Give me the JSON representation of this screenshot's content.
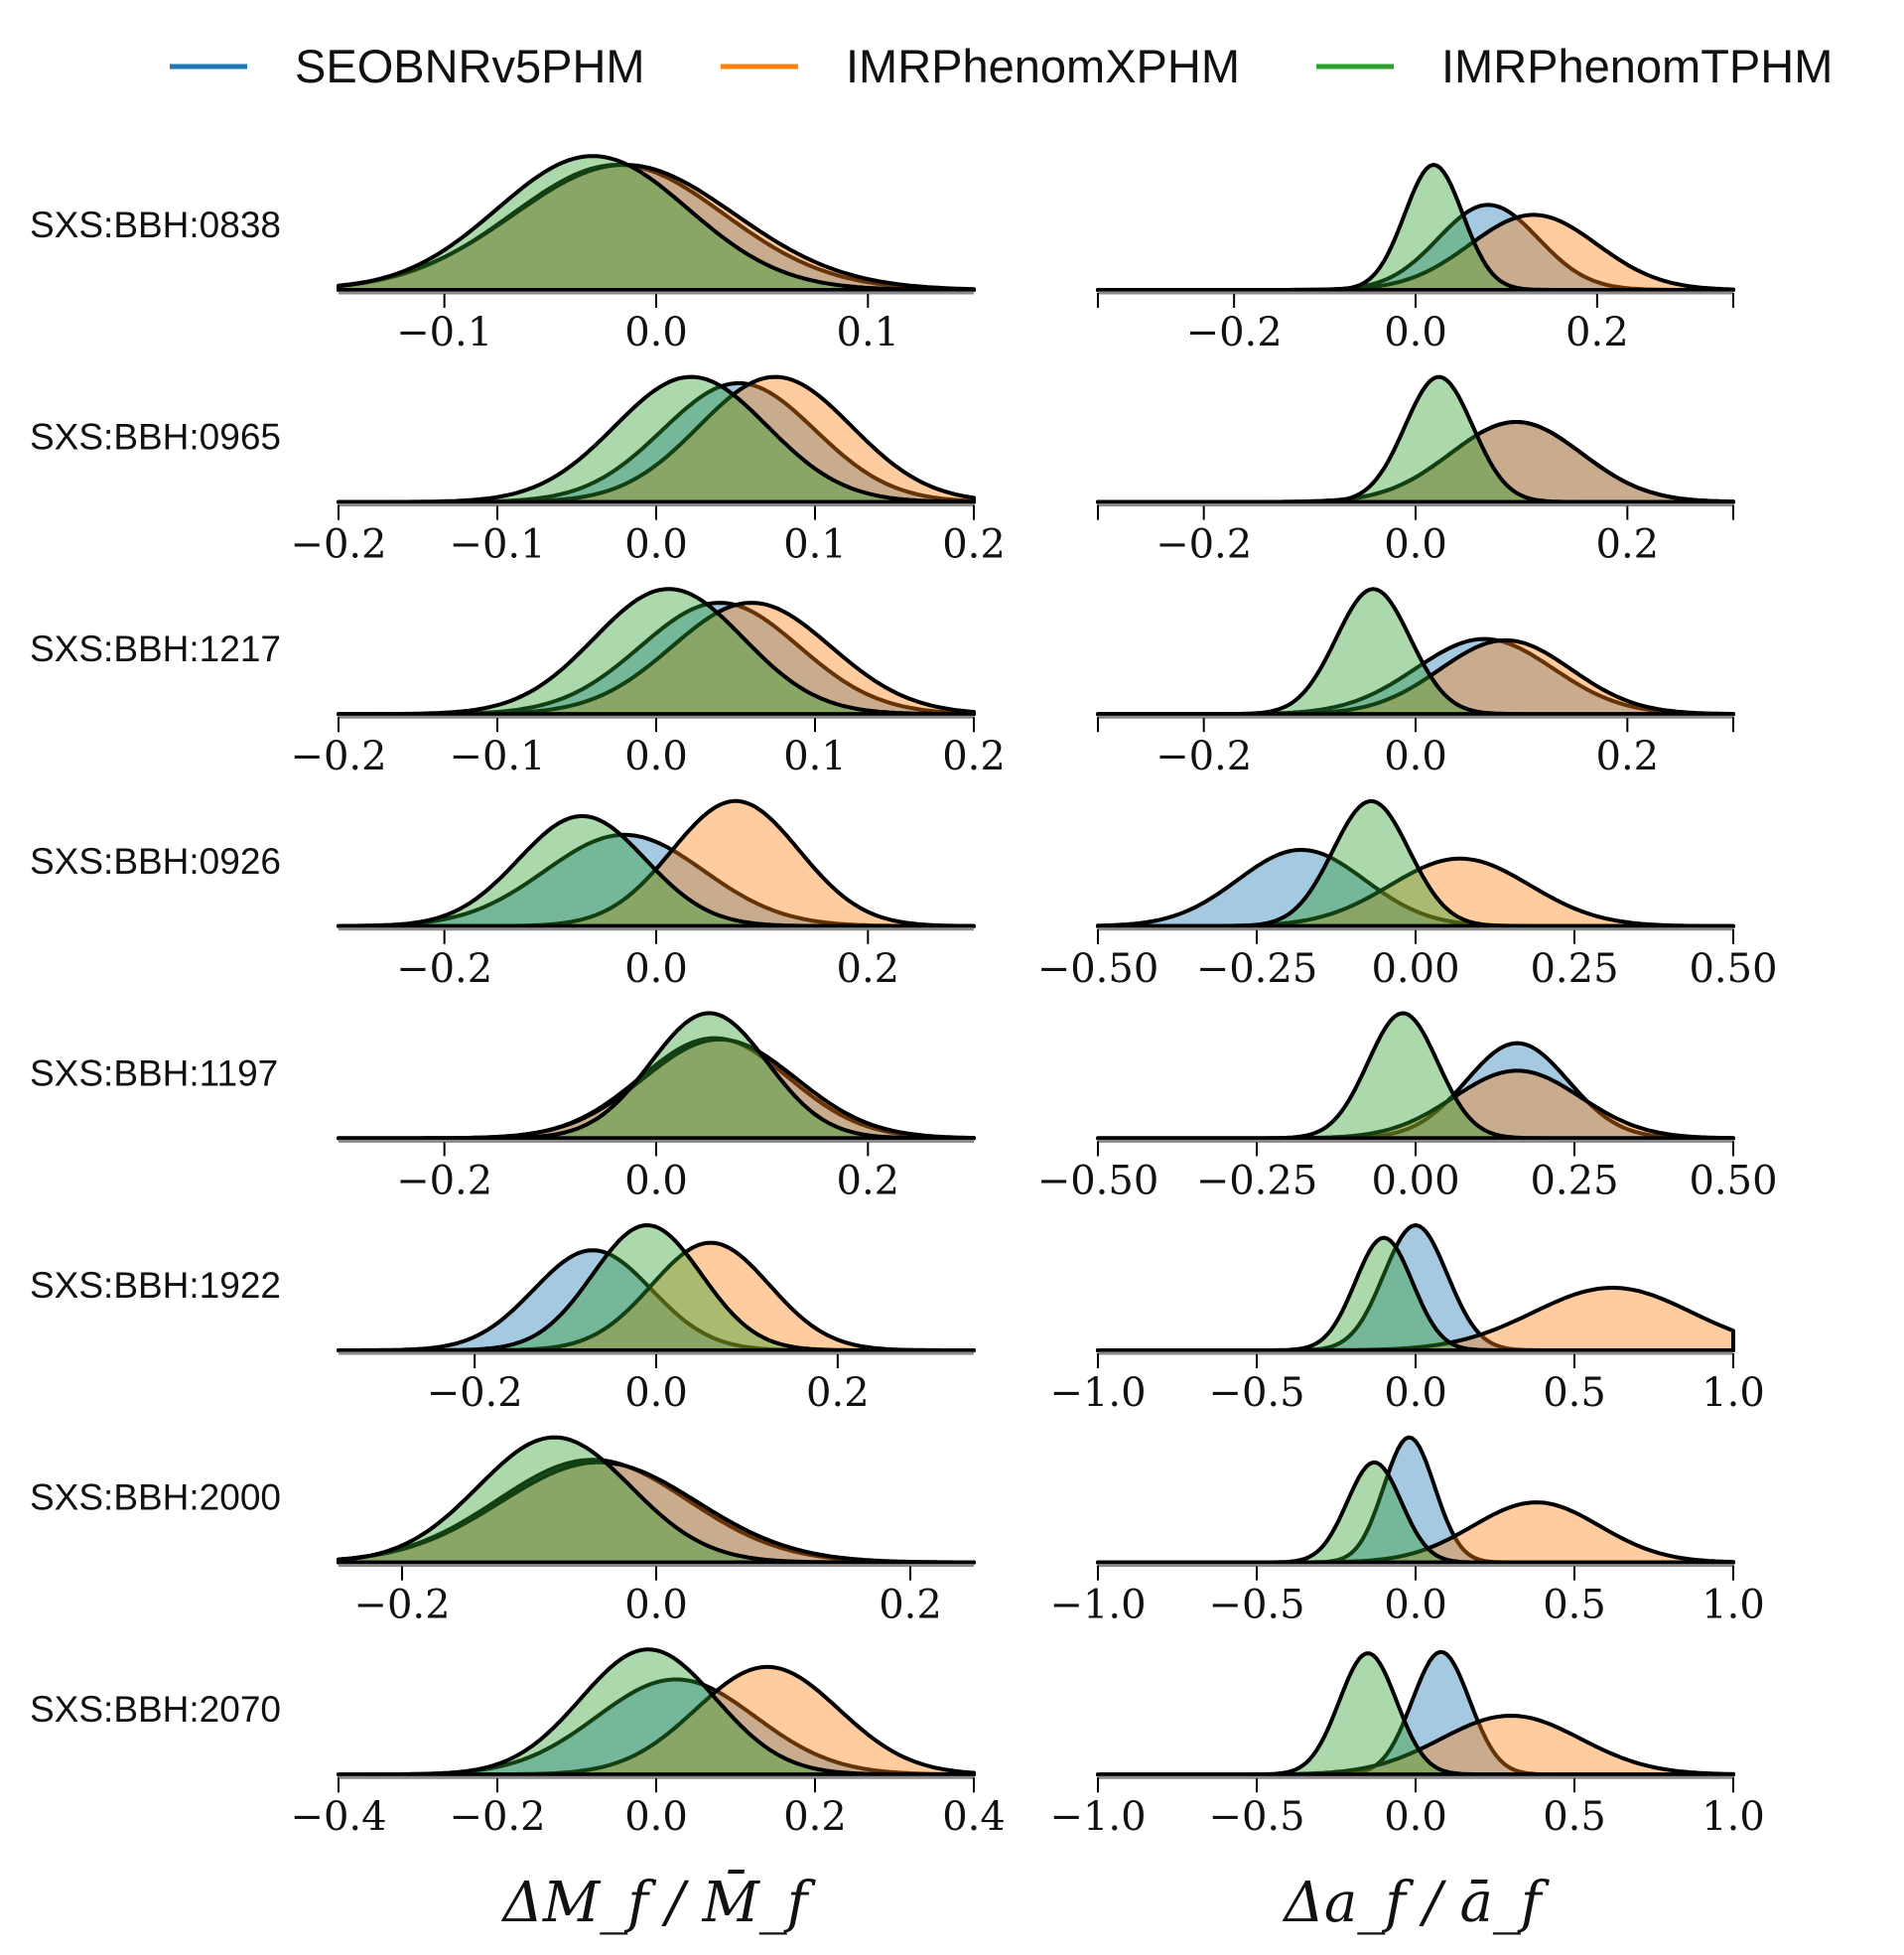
{
  "colors": {
    "SEOBNRv5PHM": "#1f77b4",
    "IMRPhenomXPHM": "#ff7f0e",
    "IMRPhenomTPHM": "#2ca02c"
  },
  "legend": [
    {
      "name": "SEOBNRv5PHM",
      "color": "#1f77b4"
    },
    {
      "name": "IMRPhenomXPHM",
      "color": "#ff7f0e"
    },
    {
      "name": "IMRPhenomTPHM",
      "color": "#2ca02c"
    }
  ],
  "xlabels": {
    "left": "ΔM_f / M̄_f",
    "right": "Δa_f / ā_f"
  },
  "chart_data": [
    {
      "type": "area",
      "row": "SXS:BBH:0838",
      "column": "mass",
      "xlim": [
        -0.15,
        0.15
      ],
      "ticks": [
        -0.1,
        0.0,
        0.1
      ],
      "tick_labels": [
        "−0.1",
        "0.0",
        "0.1"
      ],
      "tick_marks": false,
      "series": [
        {
          "name": "SEOBNRv5PHM",
          "mean": -0.018,
          "sd": 0.05,
          "peak": 1.0
        },
        {
          "name": "IMRPhenomXPHM",
          "mean": -0.015,
          "sd": 0.052,
          "peak": 1.0
        },
        {
          "name": "IMRPhenomTPHM",
          "mean": -0.03,
          "sd": 0.045,
          "peak": 1.07
        }
      ]
    },
    {
      "type": "area",
      "row": "SXS:BBH:0838",
      "column": "spin",
      "xlim": [
        -0.35,
        0.35
      ],
      "ticks": [
        -0.2,
        0.0,
        0.2
      ],
      "tick_labels": [
        "−0.2",
        "0.0",
        "0.2"
      ],
      "tick_marks": true,
      "series": [
        {
          "name": "SEOBNRv5PHM",
          "mean": 0.08,
          "sd": 0.055,
          "peak": 0.68
        },
        {
          "name": "IMRPhenomXPHM",
          "mean": 0.13,
          "sd": 0.07,
          "peak": 0.6
        },
        {
          "name": "IMRPhenomTPHM",
          "mean": 0.02,
          "sd": 0.032,
          "peak": 1.0
        }
      ]
    },
    {
      "type": "area",
      "row": "SXS:BBH:0965",
      "column": "mass",
      "xlim": [
        -0.2,
        0.2
      ],
      "ticks": [
        -0.2,
        -0.1,
        0.0,
        0.1,
        0.2
      ],
      "tick_labels": [
        "−0.2",
        "−0.1",
        "0.0",
        "0.1",
        "0.2"
      ],
      "tick_marks": true,
      "series": [
        {
          "name": "SEOBNRv5PHM",
          "mean": 0.052,
          "sd": 0.048,
          "peak": 0.95
        },
        {
          "name": "IMRPhenomXPHM",
          "mean": 0.075,
          "sd": 0.048,
          "peak": 1.0
        },
        {
          "name": "IMRPhenomTPHM",
          "mean": 0.022,
          "sd": 0.048,
          "peak": 1.0
        }
      ]
    },
    {
      "type": "area",
      "row": "SXS:BBH:0965",
      "column": "spin",
      "xlim": [
        -0.3,
        0.3
      ],
      "ticks": [
        -0.2,
        0.0,
        0.2
      ],
      "tick_labels": [
        "−0.2",
        "0.0",
        "0.2"
      ],
      "tick_marks": true,
      "series": [
        {
          "name": "SEOBNRv5PHM",
          "mean": 0.095,
          "sd": 0.062,
          "peak": 0.64
        },
        {
          "name": "IMRPhenomXPHM",
          "mean": 0.095,
          "sd": 0.062,
          "peak": 0.64
        },
        {
          "name": "IMRPhenomTPHM",
          "mean": 0.022,
          "sd": 0.032,
          "peak": 1.0
        }
      ]
    },
    {
      "type": "area",
      "row": "SXS:BBH:1217",
      "column": "mass",
      "xlim": [
        -0.2,
        0.2
      ],
      "ticks": [
        -0.2,
        -0.1,
        0.0,
        0.1,
        0.2
      ],
      "tick_labels": [
        "−0.2",
        "−0.1",
        "0.0",
        "0.1",
        "0.2"
      ],
      "tick_marks": true,
      "series": [
        {
          "name": "SEOBNRv5PHM",
          "mean": 0.04,
          "sd": 0.05,
          "peak": 0.89
        },
        {
          "name": "IMRPhenomXPHM",
          "mean": 0.06,
          "sd": 0.05,
          "peak": 0.89
        },
        {
          "name": "IMRPhenomTPHM",
          "mean": 0.008,
          "sd": 0.047,
          "peak": 1.0
        }
      ]
    },
    {
      "type": "area",
      "row": "SXS:BBH:1217",
      "column": "spin",
      "xlim": [
        -0.3,
        0.3
      ],
      "ticks": [
        -0.2,
        0.0,
        0.2
      ],
      "tick_labels": [
        "−0.2",
        "0.0",
        "0.2"
      ],
      "tick_marks": true,
      "series": [
        {
          "name": "SEOBNRv5PHM",
          "mean": 0.065,
          "sd": 0.065,
          "peak": 0.6
        },
        {
          "name": "IMRPhenomXPHM",
          "mean": 0.085,
          "sd": 0.062,
          "peak": 0.59
        },
        {
          "name": "IMRPhenomTPHM",
          "mean": -0.04,
          "sd": 0.035,
          "peak": 1.0
        }
      ]
    },
    {
      "type": "area",
      "row": "SXS:BBH:0926",
      "column": "mass",
      "xlim": [
        -0.3,
        0.3
      ],
      "ticks": [
        -0.2,
        0.0,
        0.2
      ],
      "tick_labels": [
        "−0.2",
        "0.0",
        "0.2"
      ],
      "tick_marks": false,
      "series": [
        {
          "name": "SEOBNRv5PHM",
          "mean": -0.03,
          "sd": 0.075,
          "peak": 0.73
        },
        {
          "name": "IMRPhenomXPHM",
          "mean": 0.075,
          "sd": 0.06,
          "peak": 1.0
        },
        {
          "name": "IMRPhenomTPHM",
          "mean": -0.07,
          "sd": 0.06,
          "peak": 0.88
        }
      ]
    },
    {
      "type": "area",
      "row": "SXS:BBH:0926",
      "column": "spin",
      "xlim": [
        -0.5,
        0.5
      ],
      "ticks": [
        -0.5,
        -0.25,
        0.0,
        0.25,
        0.5
      ],
      "tick_labels": [
        "−0.50",
        "−0.25",
        "0.00",
        "0.25",
        "0.50"
      ],
      "tick_marks": true,
      "series": [
        {
          "name": "SEOBNRv5PHM",
          "mean": -0.18,
          "sd": 0.1,
          "peak": 0.61
        },
        {
          "name": "IMRPhenomXPHM",
          "mean": 0.07,
          "sd": 0.11,
          "peak": 0.54
        },
        {
          "name": "IMRPhenomTPHM",
          "mean": -0.07,
          "sd": 0.06,
          "peak": 1.0
        }
      ]
    },
    {
      "type": "area",
      "row": "SXS:BBH:1197",
      "column": "mass",
      "xlim": [
        -0.3,
        0.3
      ],
      "ticks": [
        -0.2,
        0.0,
        0.2
      ],
      "tick_labels": [
        "−0.2",
        "0.0",
        "0.2"
      ],
      "tick_marks": false,
      "series": [
        {
          "name": "SEOBNRv5PHM",
          "mean": 0.055,
          "sd": 0.07,
          "peak": 0.8
        },
        {
          "name": "IMRPhenomXPHM",
          "mean": 0.06,
          "sd": 0.072,
          "peak": 0.79
        },
        {
          "name": "IMRPhenomTPHM",
          "mean": 0.05,
          "sd": 0.055,
          "peak": 1.0
        }
      ]
    },
    {
      "type": "area",
      "row": "SXS:BBH:1197",
      "column": "spin",
      "xlim": [
        -0.5,
        0.5
      ],
      "ticks": [
        -0.5,
        -0.25,
        0.0,
        0.25,
        0.5
      ],
      "tick_labels": [
        "−0.50",
        "−0.25",
        "0.00",
        "0.25",
        "0.50"
      ],
      "tick_marks": true,
      "series": [
        {
          "name": "SEOBNRv5PHM",
          "mean": 0.16,
          "sd": 0.08,
          "peak": 0.76
        },
        {
          "name": "IMRPhenomXPHM",
          "mean": 0.16,
          "sd": 0.1,
          "peak": 0.54
        },
        {
          "name": "IMRPhenomTPHM",
          "mean": -0.02,
          "sd": 0.055,
          "peak": 1.0
        }
      ]
    },
    {
      "type": "area",
      "row": "SXS:BBH:1922",
      "column": "mass",
      "xlim": [
        -0.35,
        0.35
      ],
      "ticks": [
        -0.2,
        0.0,
        0.2
      ],
      "tick_labels": [
        "−0.2",
        "0.0",
        "0.2"
      ],
      "tick_marks": false,
      "series": [
        {
          "name": "SEOBNRv5PHM",
          "mean": -0.07,
          "sd": 0.065,
          "peak": 0.8
        },
        {
          "name": "IMRPhenomXPHM",
          "mean": 0.06,
          "sd": 0.065,
          "peak": 0.86
        },
        {
          "name": "IMRPhenomTPHM",
          "mean": -0.01,
          "sd": 0.06,
          "peak": 1.0
        }
      ]
    },
    {
      "type": "area",
      "row": "SXS:BBH:1922",
      "column": "spin",
      "xlim": [
        -1.0,
        1.0
      ],
      "ticks": [
        -1.0,
        -0.5,
        0.0,
        0.5,
        1.0
      ],
      "tick_labels": [
        "−1.0",
        "−0.5",
        "0.0",
        "0.5",
        "1.0"
      ],
      "tick_marks": true,
      "series": [
        {
          "name": "SEOBNRv5PHM",
          "mean": 0.0,
          "sd": 0.1,
          "peak": 1.0
        },
        {
          "name": "IMRPhenomXPHM",
          "mean": 0.62,
          "sd": 0.25,
          "peak": 0.5
        },
        {
          "name": "IMRPhenomTPHM",
          "mean": -0.1,
          "sd": 0.09,
          "peak": 0.9
        }
      ]
    },
    {
      "type": "area",
      "row": "SXS:BBH:2000",
      "column": "mass",
      "xlim": [
        -0.25,
        0.25
      ],
      "ticks": [
        -0.2,
        0.0,
        0.2
      ],
      "tick_labels": [
        "−0.2",
        "0.0",
        "0.2"
      ],
      "tick_marks": false,
      "series": [
        {
          "name": "SEOBNRv5PHM",
          "mean": -0.05,
          "sd": 0.075,
          "peak": 0.82
        },
        {
          "name": "IMRPhenomXPHM",
          "mean": -0.045,
          "sd": 0.077,
          "peak": 0.8
        },
        {
          "name": "IMRPhenomTPHM",
          "mean": -0.08,
          "sd": 0.06,
          "peak": 1.0
        }
      ]
    },
    {
      "type": "area",
      "row": "SXS:BBH:2000",
      "column": "spin",
      "xlim": [
        -1.0,
        1.0
      ],
      "ticks": [
        -1.0,
        -0.5,
        0.0,
        0.5,
        1.0
      ],
      "tick_labels": [
        "−1.0",
        "−0.5",
        "0.0",
        "0.5",
        "1.0"
      ],
      "tick_marks": true,
      "series": [
        {
          "name": "SEOBNRv5PHM",
          "mean": -0.02,
          "sd": 0.08,
          "peak": 1.0
        },
        {
          "name": "IMRPhenomXPHM",
          "mean": 0.38,
          "sd": 0.2,
          "peak": 0.48
        },
        {
          "name": "IMRPhenomTPHM",
          "mean": -0.13,
          "sd": 0.085,
          "peak": 0.8
        }
      ]
    },
    {
      "type": "area",
      "row": "SXS:BBH:2070",
      "column": "mass",
      "xlim": [
        -0.4,
        0.4
      ],
      "ticks": [
        -0.4,
        -0.2,
        0.0,
        0.2,
        0.4
      ],
      "tick_labels": [
        "−0.4",
        "−0.2",
        "0.0",
        "0.2",
        "0.4"
      ],
      "tick_marks": true,
      "series": [
        {
          "name": "SEOBNRv5PHM",
          "mean": 0.025,
          "sd": 0.1,
          "peak": 0.76
        },
        {
          "name": "IMRPhenomXPHM",
          "mean": 0.14,
          "sd": 0.09,
          "peak": 0.86
        },
        {
          "name": "IMRPhenomTPHM",
          "mean": -0.01,
          "sd": 0.085,
          "peak": 1.0
        }
      ]
    },
    {
      "type": "area",
      "row": "SXS:BBH:2070",
      "column": "spin",
      "xlim": [
        -1.0,
        1.0
      ],
      "ticks": [
        -1.0,
        -0.5,
        0.0,
        0.5,
        1.0
      ],
      "tick_labels": [
        "−1.0",
        "−0.5",
        "0.0",
        "0.5",
        "1.0"
      ],
      "tick_marks": true,
      "series": [
        {
          "name": "SEOBNRv5PHM",
          "mean": 0.08,
          "sd": 0.09,
          "peak": 0.98
        },
        {
          "name": "IMRPhenomXPHM",
          "mean": 0.3,
          "sd": 0.22,
          "peak": 0.47
        },
        {
          "name": "IMRPhenomTPHM",
          "mean": -0.15,
          "sd": 0.09,
          "peak": 0.97
        }
      ]
    }
  ]
}
